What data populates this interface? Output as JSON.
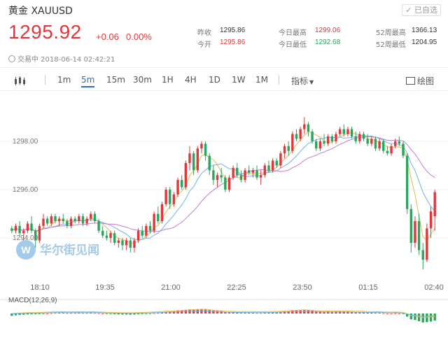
{
  "header": {
    "title": "黄金  XAUUSD",
    "added_label": "已自选",
    "price": "1295.92",
    "change": "+0.06",
    "change_pct": "0.00%",
    "status": "交易中 2018-06-14 02:42:21"
  },
  "stats": [
    {
      "label": "昨收",
      "value": "1295.86",
      "tone": "normal"
    },
    {
      "label": "今开",
      "value": "1295.86",
      "tone": "red"
    },
    {
      "label": "今日最高",
      "value": "1299.06",
      "tone": "red"
    },
    {
      "label": "今日最低",
      "value": "1292.68",
      "tone": "green"
    },
    {
      "label": "52周最高",
      "value": "1366.13",
      "tone": "normal"
    },
    {
      "label": "52周最低",
      "value": "1204.95",
      "tone": "normal"
    }
  ],
  "toolbar": {
    "intervals": [
      "1m",
      "5m",
      "15m",
      "30m",
      "1H",
      "4H",
      "1D",
      "1W",
      "1M"
    ],
    "active_interval": "5m",
    "indicators_label": "指标",
    "draw_label": "绘图"
  },
  "watermark": {
    "text": "华尔街见闻",
    "logo_letter": "W"
  },
  "colors": {
    "up": "#e1373a",
    "down": "#2aa55b",
    "accent": "#2f6cc8",
    "ma1": "#e9b74b",
    "ma2": "#6fb4e0",
    "ma3": "#c77ad6"
  },
  "chart_data": {
    "type": "candlestick",
    "ylim": [
      1292.5,
      1299.5
    ],
    "y_ticks": [
      1294.0,
      1296.0,
      1298.0
    ],
    "y_tick_labels": [
      "1294.00",
      "1296.00",
      "1298.00"
    ],
    "x_ticks": [
      "18:10",
      "19:35",
      "21:00",
      "22:25",
      "23:50",
      "01:15",
      "02:40"
    ],
    "indicator_label": "MACD(12,26,9)",
    "candles": [
      [
        1294.4,
        1294.5,
        1294.2,
        1294.3
      ],
      [
        1294.3,
        1294.6,
        1294.2,
        1294.5
      ],
      [
        1294.5,
        1294.7,
        1294.1,
        1294.2
      ],
      [
        1294.2,
        1294.4,
        1293.9,
        1294.3
      ],
      [
        1294.3,
        1294.7,
        1294.2,
        1294.6
      ],
      [
        1294.6,
        1294.9,
        1294.2,
        1294.3
      ],
      [
        1294.3,
        1294.4,
        1293.6,
        1293.9
      ],
      [
        1293.9,
        1294.6,
        1293.8,
        1294.5
      ],
      [
        1294.5,
        1295.0,
        1294.4,
        1294.8
      ],
      [
        1294.8,
        1294.9,
        1294.5,
        1294.6
      ],
      [
        1294.6,
        1295.0,
        1294.5,
        1294.9
      ],
      [
        1294.9,
        1295.0,
        1294.6,
        1294.7
      ],
      [
        1294.7,
        1294.9,
        1294.5,
        1294.8
      ],
      [
        1294.8,
        1295.0,
        1294.6,
        1294.7
      ],
      [
        1294.7,
        1294.8,
        1294.4,
        1294.5
      ],
      [
        1294.5,
        1294.9,
        1294.4,
        1294.8
      ],
      [
        1294.8,
        1294.9,
        1294.6,
        1294.7
      ],
      [
        1294.7,
        1295.0,
        1294.6,
        1294.9
      ],
      [
        1294.9,
        1295.0,
        1294.5,
        1294.6
      ],
      [
        1294.6,
        1294.9,
        1294.5,
        1294.8
      ],
      [
        1294.8,
        1295.1,
        1294.7,
        1295.0
      ],
      [
        1295.0,
        1295.1,
        1294.6,
        1294.7
      ],
      [
        1294.7,
        1294.8,
        1294.2,
        1294.3
      ],
      [
        1294.3,
        1294.5,
        1294.0,
        1294.1
      ],
      [
        1294.1,
        1294.3,
        1293.9,
        1294.0
      ],
      [
        1294.0,
        1294.3,
        1293.8,
        1294.2
      ],
      [
        1294.2,
        1294.3,
        1293.7,
        1293.8
      ],
      [
        1293.8,
        1294.0,
        1293.6,
        1293.9
      ],
      [
        1293.9,
        1294.0,
        1293.5,
        1293.7
      ],
      [
        1293.7,
        1294.0,
        1293.5,
        1293.9
      ],
      [
        1293.9,
        1294.0,
        1293.4,
        1293.6
      ],
      [
        1293.6,
        1294.0,
        1293.4,
        1293.9
      ],
      [
        1293.9,
        1294.4,
        1293.8,
        1294.3
      ],
      [
        1294.3,
        1294.5,
        1294.0,
        1294.1
      ],
      [
        1294.1,
        1294.6,
        1294.0,
        1294.5
      ],
      [
        1294.5,
        1294.7,
        1294.2,
        1294.3
      ],
      [
        1294.3,
        1295.1,
        1294.2,
        1295.0
      ],
      [
        1295.0,
        1295.3,
        1294.6,
        1294.7
      ],
      [
        1294.7,
        1295.5,
        1294.6,
        1295.4
      ],
      [
        1295.4,
        1296.1,
        1295.3,
        1296.0
      ],
      [
        1296.0,
        1296.1,
        1295.2,
        1295.4
      ],
      [
        1295.4,
        1295.9,
        1295.3,
        1295.8
      ],
      [
        1295.8,
        1296.5,
        1295.7,
        1296.4
      ],
      [
        1296.4,
        1296.6,
        1296.0,
        1296.1
      ],
      [
        1296.1,
        1297.2,
        1296.0,
        1297.1
      ],
      [
        1297.1,
        1297.8,
        1296.8,
        1297.5
      ],
      [
        1297.5,
        1297.6,
        1296.6,
        1296.8
      ],
      [
        1296.8,
        1297.8,
        1296.7,
        1297.7
      ],
      [
        1297.7,
        1298.0,
        1297.5,
        1297.9
      ],
      [
        1297.9,
        1298.0,
        1297.2,
        1297.4
      ],
      [
        1297.4,
        1297.5,
        1296.6,
        1296.8
      ],
      [
        1296.8,
        1297.0,
        1296.2,
        1296.4
      ],
      [
        1296.4,
        1296.7,
        1296.1,
        1296.6
      ],
      [
        1296.6,
        1296.9,
        1296.3,
        1296.5
      ],
      [
        1296.5,
        1296.6,
        1295.9,
        1296.0
      ],
      [
        1296.0,
        1296.6,
        1295.9,
        1296.5
      ],
      [
        1296.5,
        1297.0,
        1296.4,
        1296.9
      ],
      [
        1296.9,
        1297.1,
        1296.5,
        1296.6
      ],
      [
        1296.6,
        1296.8,
        1296.3,
        1296.4
      ],
      [
        1296.4,
        1296.9,
        1296.3,
        1296.8
      ],
      [
        1296.8,
        1297.0,
        1296.6,
        1296.7
      ],
      [
        1296.7,
        1296.9,
        1296.5,
        1296.8
      ],
      [
        1296.8,
        1297.0,
        1296.4,
        1296.5
      ],
      [
        1296.5,
        1296.8,
        1296.2,
        1296.6
      ],
      [
        1296.6,
        1297.1,
        1296.5,
        1297.0
      ],
      [
        1297.0,
        1297.2,
        1296.7,
        1296.8
      ],
      [
        1296.8,
        1297.3,
        1296.7,
        1297.2
      ],
      [
        1297.2,
        1297.3,
        1296.9,
        1297.0
      ],
      [
        1297.0,
        1297.6,
        1296.9,
        1297.5
      ],
      [
        1297.5,
        1297.9,
        1297.3,
        1297.8
      ],
      [
        1297.8,
        1298.0,
        1297.4,
        1297.6
      ],
      [
        1297.6,
        1298.4,
        1297.5,
        1298.3
      ],
      [
        1298.3,
        1298.5,
        1298.0,
        1298.1
      ],
      [
        1298.1,
        1298.6,
        1298.0,
        1298.5
      ],
      [
        1298.5,
        1299.0,
        1298.3,
        1298.7
      ],
      [
        1298.7,
        1298.8,
        1298.2,
        1298.4
      ],
      [
        1298.4,
        1298.5,
        1297.9,
        1298.0
      ],
      [
        1298.0,
        1298.1,
        1297.6,
        1297.7
      ],
      [
        1297.7,
        1298.1,
        1297.6,
        1298.0
      ],
      [
        1298.0,
        1298.3,
        1297.8,
        1297.9
      ],
      [
        1297.9,
        1298.3,
        1297.8,
        1298.2
      ],
      [
        1298.2,
        1298.3,
        1297.9,
        1298.0
      ],
      [
        1298.0,
        1298.4,
        1297.9,
        1298.3
      ],
      [
        1298.3,
        1298.6,
        1298.2,
        1298.5
      ],
      [
        1298.5,
        1298.7,
        1298.2,
        1298.3
      ],
      [
        1298.3,
        1298.6,
        1298.2,
        1298.5
      ],
      [
        1298.5,
        1298.6,
        1298.1,
        1298.2
      ],
      [
        1298.2,
        1298.4,
        1297.9,
        1298.0
      ],
      [
        1298.0,
        1298.4,
        1297.9,
        1298.3
      ],
      [
        1298.3,
        1298.4,
        1298.0,
        1298.1
      ],
      [
        1298.1,
        1298.3,
        1297.8,
        1297.9
      ],
      [
        1297.9,
        1298.2,
        1297.8,
        1298.1
      ],
      [
        1298.1,
        1298.2,
        1297.6,
        1297.7
      ],
      [
        1297.7,
        1298.1,
        1297.6,
        1298.0
      ],
      [
        1298.0,
        1298.1,
        1297.5,
        1297.6
      ],
      [
        1297.6,
        1297.8,
        1297.4,
        1297.5
      ],
      [
        1297.5,
        1297.9,
        1297.4,
        1297.8
      ],
      [
        1297.8,
        1298.1,
        1297.7,
        1298.0
      ],
      [
        1298.0,
        1298.2,
        1297.8,
        1297.9
      ],
      [
        1297.9,
        1298.0,
        1297.3,
        1297.4
      ],
      [
        1297.4,
        1297.5,
        1295.0,
        1295.2
      ],
      [
        1295.2,
        1295.4,
        1293.4,
        1293.8
      ],
      [
        1293.8,
        1294.9,
        1293.6,
        1294.7
      ],
      [
        1294.7,
        1295.0,
        1293.3,
        1293.5
      ],
      [
        1293.5,
        1293.8,
        1292.7,
        1293.1
      ],
      [
        1293.1,
        1294.6,
        1293.0,
        1294.4
      ],
      [
        1294.4,
        1295.3,
        1294.0,
        1295.1
      ],
      [
        1294.9,
        1296.0,
        1294.3,
        1295.9
      ]
    ],
    "macd_hist": [
      -0.15,
      -0.12,
      -0.1,
      -0.08,
      -0.06,
      -0.05,
      -0.05,
      -0.04,
      -0.02,
      0.0,
      0.02,
      0.03,
      0.04,
      0.04,
      0.03,
      0.03,
      0.03,
      0.04,
      0.03,
      0.03,
      0.04,
      0.03,
      0.02,
      0.0,
      -0.02,
      -0.03,
      -0.05,
      -0.06,
      -0.07,
      -0.07,
      -0.08,
      -0.07,
      -0.05,
      -0.04,
      -0.02,
      -0.01,
      0.02,
      0.03,
      0.06,
      0.1,
      0.12,
      0.14,
      0.17,
      0.18,
      0.22,
      0.26,
      0.26,
      0.28,
      0.3,
      0.29,
      0.25,
      0.2,
      0.17,
      0.15,
      0.1,
      0.08,
      0.08,
      0.06,
      0.04,
      0.05,
      0.05,
      0.05,
      0.03,
      0.03,
      0.05,
      0.05,
      0.07,
      0.07,
      0.1,
      0.13,
      0.14,
      0.18,
      0.2,
      0.22,
      0.24,
      0.22,
      0.19,
      0.15,
      0.14,
      0.12,
      0.13,
      0.12,
      0.13,
      0.14,
      0.13,
      0.13,
      0.11,
      0.09,
      0.09,
      0.08,
      0.06,
      0.06,
      0.04,
      0.04,
      0.02,
      0.0,
      0.0,
      0.01,
      0.0,
      -0.03,
      -0.2,
      -0.38,
      -0.42,
      -0.5,
      -0.58,
      -0.56,
      -0.52,
      -0.46
    ]
  }
}
